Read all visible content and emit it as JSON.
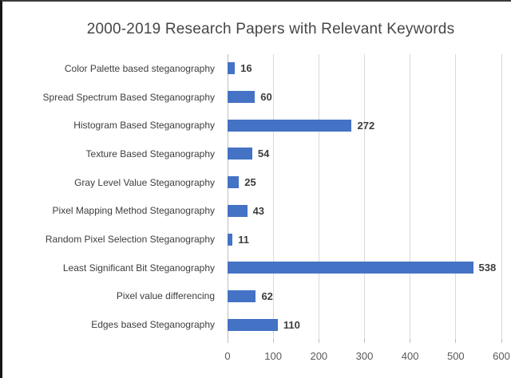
{
  "chart_data": {
    "type": "bar",
    "orientation": "horizontal",
    "title": "2000-2019 Research Papers with Relevant Keywords",
    "categories": [
      "Color Palette based steganography",
      "Spread Spectrum Based Steganography",
      "Histogram Based Steganography",
      "Texture Based Steganography",
      "Gray Level Value Steganography",
      "Pixel Mapping Method Steganography",
      "Random Pixel Selection Steganography",
      "Least Significant Bit Steganography",
      "Pixel value differencing",
      "Edges based Steganography"
    ],
    "values": [
      16,
      60,
      272,
      54,
      25,
      43,
      11,
      538,
      62,
      110
    ],
    "data_labels": [
      "16",
      "60",
      "272",
      "54",
      "25",
      "43",
      "11",
      "538",
      "62",
      "110"
    ],
    "xlabel": "",
    "ylabel": "",
    "x_ticks": [
      0,
      100,
      200,
      300,
      400,
      500,
      600
    ],
    "xlim": [
      0,
      600
    ],
    "grid": "vertical-only",
    "legend": "none"
  },
  "colors": {
    "bar": "#4472C4",
    "gridline": "#d9d9d9",
    "axis_line": "#bfbfbf",
    "title_text": "#464646",
    "category_text": "#3d3d3d",
    "value_text": "#3d3d3d",
    "tick_text": "#595959"
  }
}
